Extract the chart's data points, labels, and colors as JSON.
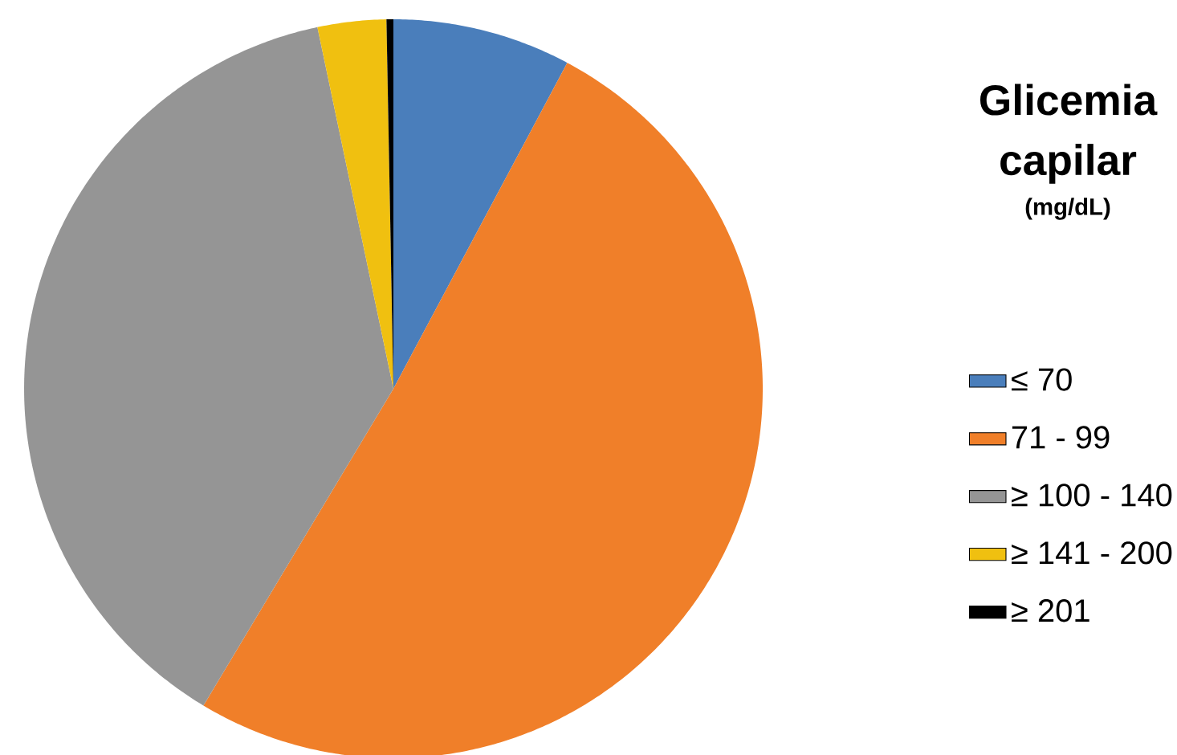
{
  "chart_data": {
    "type": "pie",
    "legend_title": "Glicemia capilar",
    "subtitle": "(mg/dL)",
    "categories": [
      "≤ 70",
      "71 - 99",
      "≥ 100 - 140",
      "≥ 141 - 200",
      "≥ 201"
    ],
    "values": [
      7.8,
      50.8,
      38.1,
      3.0,
      0.3
    ],
    "colors": [
      "#4a7ebb",
      "#f07f29",
      "#959595",
      "#f0c010",
      "#000000"
    ],
    "legend": "right"
  }
}
